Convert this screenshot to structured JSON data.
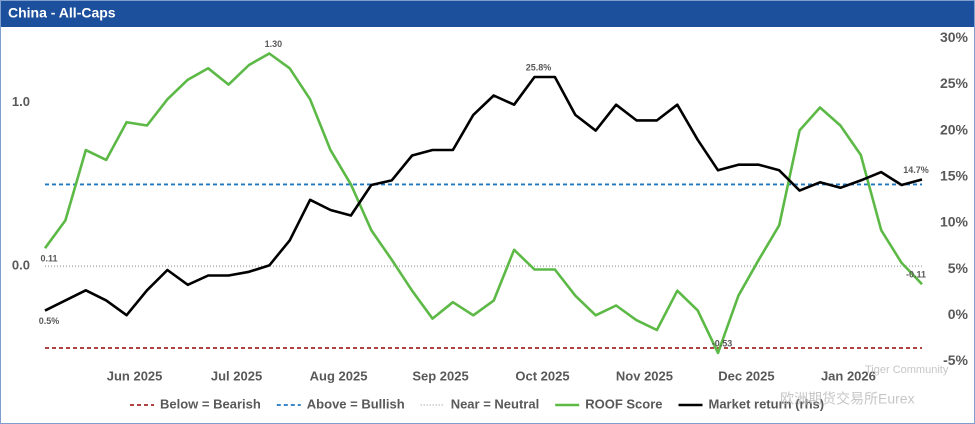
{
  "chart_data": {
    "type": "line",
    "title": "China - All-Caps",
    "categories": [
      null,
      null,
      null,
      null,
      "Jun 2025",
      null,
      null,
      null,
      null,
      "Jul 2025",
      null,
      null,
      null,
      null,
      "Aug 2025",
      null,
      null,
      null,
      null,
      "Sep 2025",
      null,
      null,
      null,
      null,
      "Oct 2025",
      null,
      null,
      null,
      null,
      "Nov 2025",
      null,
      null,
      null,
      null,
      "Dec 2025",
      null,
      null,
      null,
      null,
      "Jan 2026",
      null,
      null,
      null,
      null
    ],
    "series": [
      {
        "name": "ROOF Score",
        "color": "#5cb946",
        "axis": "y",
        "values": [
          0.11,
          0.28,
          0.71,
          0.65,
          0.88,
          0.86,
          1.02,
          1.14,
          1.21,
          1.11,
          1.23,
          1.3,
          1.21,
          1.02,
          0.71,
          0.5,
          0.22,
          0.04,
          -0.15,
          -0.32,
          -0.22,
          -0.3,
          -0.21,
          0.1,
          -0.02,
          -0.02,
          -0.18,
          -0.3,
          -0.24,
          -0.33,
          -0.39,
          -0.15,
          -0.27,
          -0.53,
          -0.18,
          0.04,
          0.25,
          0.83,
          0.97,
          0.86,
          0.68,
          0.22,
          0.02,
          -0.11
        ],
        "value_labels": [
          "0.11",
          null,
          null,
          null,
          null,
          null,
          null,
          null,
          null,
          null,
          null,
          "1.30",
          null,
          null,
          null,
          null,
          null,
          null,
          null,
          null,
          null,
          null,
          null,
          null,
          null,
          null,
          null,
          null,
          null,
          null,
          null,
          null,
          null,
          "-0.53",
          null,
          null,
          null,
          null,
          null,
          null,
          null,
          null,
          null,
          "-0.11"
        ]
      },
      {
        "name": "Market return (rhs)",
        "color": "#000000",
        "axis": "y2",
        "values": [
          0.5,
          1.6,
          2.7,
          1.6,
          0,
          2.7,
          4.9,
          3.3,
          4.3,
          4.3,
          4.7,
          5.4,
          8.1,
          12.5,
          11.4,
          10.8,
          14.1,
          14.6,
          17.3,
          17.9,
          17.9,
          21.7,
          23.8,
          22.8,
          25.8,
          25.8,
          21.7,
          20.0,
          22.8,
          21.1,
          21.1,
          22.8,
          19.0,
          15.7,
          16.3,
          16.3,
          15.7,
          13.5,
          14.4,
          13.8,
          14.6,
          15.5,
          14.1,
          14.7
        ],
        "value_labels": [
          "0.5%",
          null,
          null,
          null,
          null,
          null,
          null,
          null,
          null,
          null,
          null,
          null,
          null,
          null,
          null,
          null,
          null,
          null,
          null,
          null,
          null,
          null,
          null,
          null,
          "25.8%",
          null,
          null,
          null,
          null,
          null,
          null,
          null,
          null,
          null,
          null,
          null,
          null,
          null,
          null,
          null,
          null,
          null,
          null,
          "14.7%"
        ]
      }
    ],
    "reference_lines": [
      {
        "name": "Below = Bearish",
        "value": -0.5,
        "color": "#a52a2a",
        "dash": "4 3"
      },
      {
        "name": "Above = Bullish",
        "value": 0.5,
        "color": "#1f77c0",
        "dash": "4 3"
      },
      {
        "name": "Near = Neutral",
        "value": 0,
        "color": "#bbbbbb",
        "dash": "1 2"
      }
    ],
    "ylim": [
      -0.61,
      1.45
    ],
    "yticks": [
      {
        "value": 0,
        "label": "0.0"
      },
      {
        "value": 1,
        "label": "1.0"
      }
    ],
    "y2lim": [
      -5.5,
      31
    ],
    "y2ticks": [
      {
        "value": -5,
        "label": "-5%"
      },
      {
        "value": 0,
        "label": "0%"
      },
      {
        "value": 5,
        "label": "5%"
      },
      {
        "value": 10,
        "label": "10%"
      },
      {
        "value": 15,
        "label": "15%"
      },
      {
        "value": 20,
        "label": "20%"
      },
      {
        "value": 25,
        "label": "25%"
      },
      {
        "value": 30,
        "label": "30%"
      }
    ],
    "watermarks": [
      "Tiger Community",
      "欧洲期货交易所Eurex"
    ]
  }
}
